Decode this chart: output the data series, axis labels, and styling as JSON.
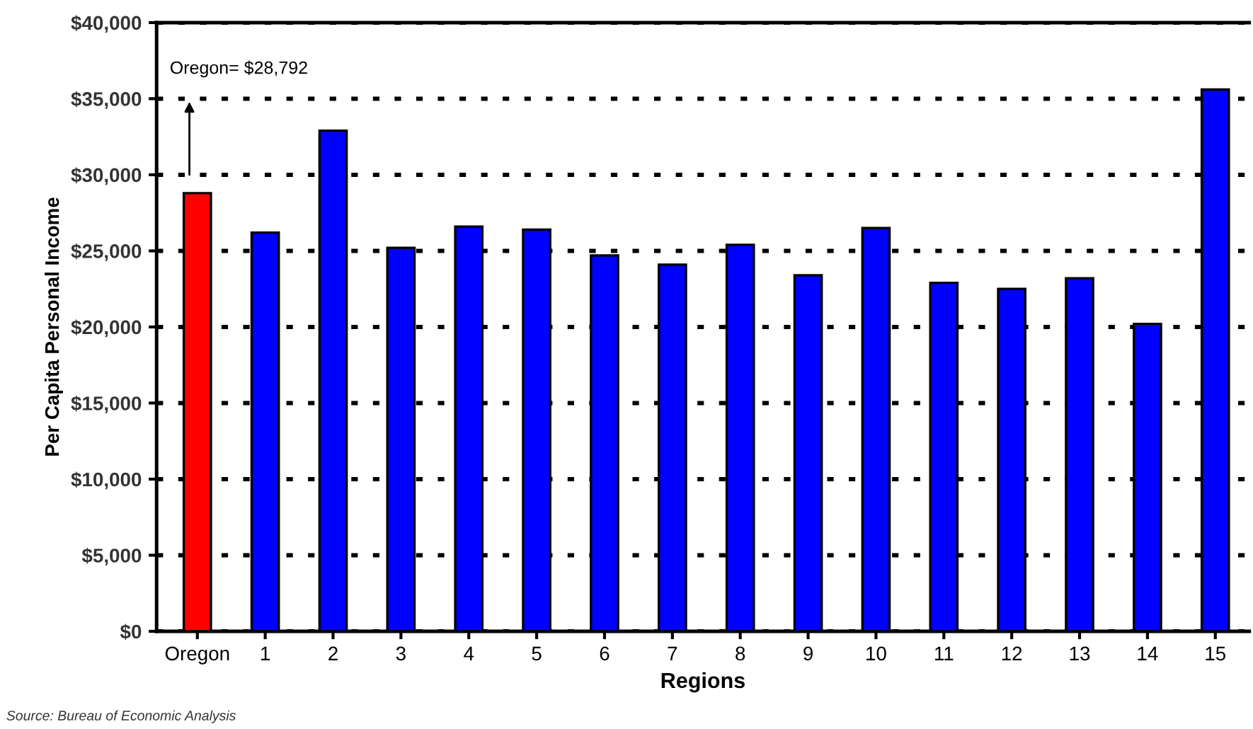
{
  "chart_data": {
    "type": "bar",
    "xlabel": "Regions",
    "ylabel": "Per Capita Personal Income",
    "categories": [
      "Oregon",
      "1",
      "2",
      "3",
      "4",
      "5",
      "6",
      "7",
      "8",
      "9",
      "10",
      "11",
      "12",
      "13",
      "14",
      "15"
    ],
    "values": [
      28792,
      26200,
      32900,
      25200,
      26600,
      26400,
      24700,
      24100,
      25400,
      23400,
      26500,
      22900,
      22500,
      23200,
      20200,
      35600
    ],
    "colors": [
      "#ff0000",
      "#0000ff",
      "#0000ff",
      "#0000ff",
      "#0000ff",
      "#0000ff",
      "#0000ff",
      "#0000ff",
      "#0000ff",
      "#0000ff",
      "#0000ff",
      "#0000ff",
      "#0000ff",
      "#0000ff",
      "#0000ff",
      "#0000ff"
    ],
    "ylim": [
      0,
      40000
    ],
    "yticks": [
      {
        "value": 0,
        "label": "$0"
      },
      {
        "value": 5000,
        "label": "$5,000"
      },
      {
        "value": 10000,
        "label": "$10,000"
      },
      {
        "value": 15000,
        "label": "$15,000"
      },
      {
        "value": 20000,
        "label": "$20,000"
      },
      {
        "value": 25000,
        "label": "$25,000"
      },
      {
        "value": 30000,
        "label": "$30,000"
      },
      {
        "value": 35000,
        "label": "$35,000"
      },
      {
        "value": 40000,
        "label": "$40,000"
      }
    ],
    "grid": "y",
    "legend": false,
    "annotations": [
      "Oregon= $28,792",
      "Source: Bureau of Economic Analysis"
    ]
  }
}
